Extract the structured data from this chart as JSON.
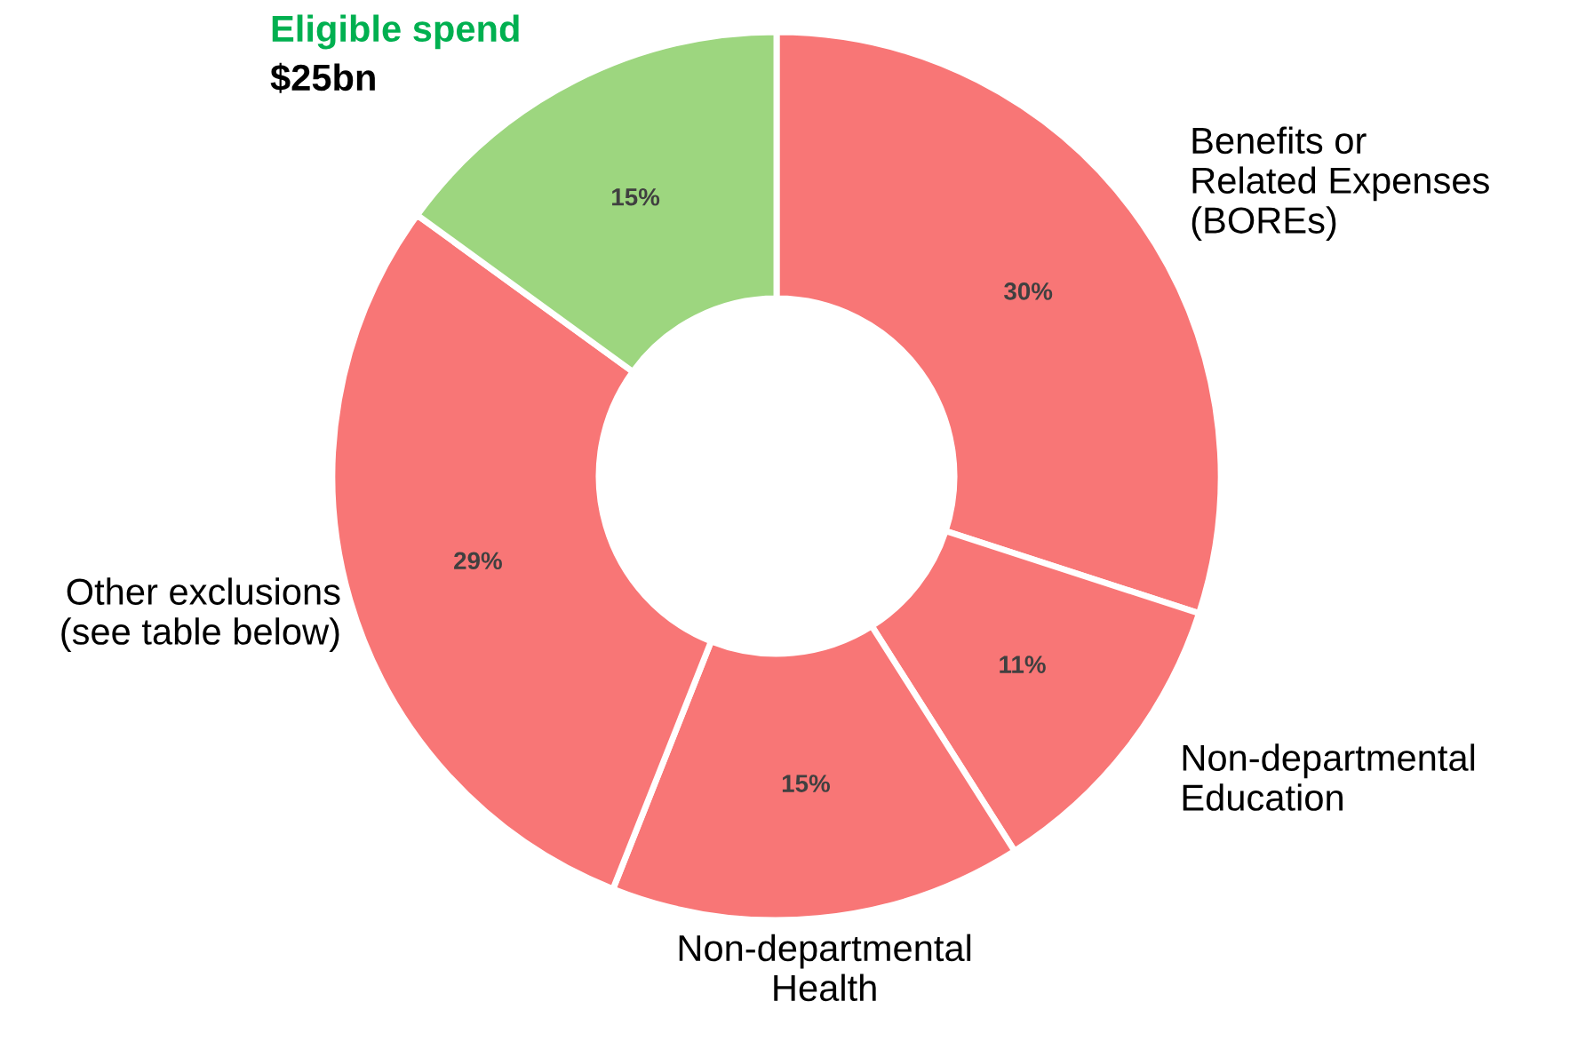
{
  "chart_data": {
    "type": "donut",
    "categories": [
      "Benefits or\nRelated Expenses\n(BOREs)",
      "Non-departmental\nEducation",
      "Non-departmental\nHealth",
      "Other exclusions\n(see table below)",
      "Eligible spend"
    ],
    "values": [
      30,
      11,
      15,
      29,
      15
    ],
    "value_labels": [
      "30%",
      "11%",
      "15%",
      "29%",
      "15%"
    ],
    "colors": [
      "#f87676",
      "#f87676",
      "#f87676",
      "#f87676",
      "#9dd67f"
    ],
    "annotations": [
      "$25bn"
    ]
  }
}
